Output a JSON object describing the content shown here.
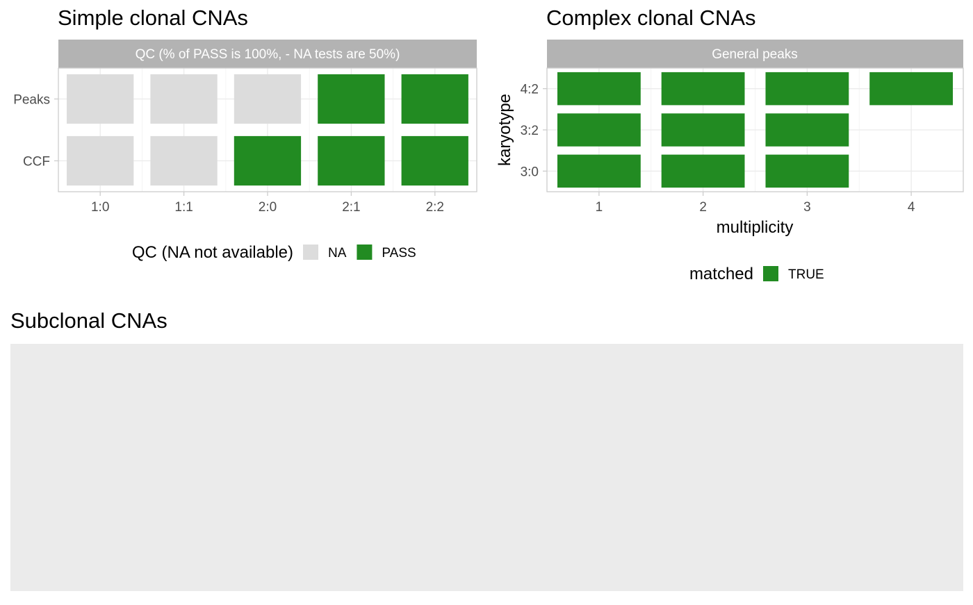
{
  "colors": {
    "PASS": "#228B22",
    "NA": "#DCDCDC",
    "TRUE": "#228B22",
    "strip": "#B3B3B3",
    "empty_panel": "#EBEBEB"
  },
  "panels": {
    "simple": {
      "title": "Simple clonal CNAs"
    },
    "complex": {
      "title": "Complex clonal CNAs"
    },
    "subclonal": {
      "title": "Subclonal CNAs"
    }
  },
  "chart_data": [
    {
      "type": "heatmap",
      "title": "Simple clonal CNAs",
      "facet_label": "QC (% of PASS is 100%, - NA tests are 50%)",
      "x_categories": [
        "1:0",
        "1:1",
        "2:0",
        "2:1",
        "2:2"
      ],
      "y_categories": [
        "Peaks",
        "CCF"
      ],
      "cells": [
        {
          "x": "1:0",
          "y": "Peaks",
          "value": "NA"
        },
        {
          "x": "1:1",
          "y": "Peaks",
          "value": "NA"
        },
        {
          "x": "2:0",
          "y": "Peaks",
          "value": "NA"
        },
        {
          "x": "2:1",
          "y": "Peaks",
          "value": "PASS"
        },
        {
          "x": "2:2",
          "y": "Peaks",
          "value": "PASS"
        },
        {
          "x": "1:0",
          "y": "CCF",
          "value": "NA"
        },
        {
          "x": "1:1",
          "y": "CCF",
          "value": "NA"
        },
        {
          "x": "2:0",
          "y": "CCF",
          "value": "PASS"
        },
        {
          "x": "2:1",
          "y": "CCF",
          "value": "PASS"
        },
        {
          "x": "2:2",
          "y": "CCF",
          "value": "PASS"
        }
      ],
      "legend": {
        "title": "QC (NA not available)",
        "entries": [
          "NA",
          "PASS"
        ],
        "position": "bottom"
      }
    },
    {
      "type": "heatmap",
      "title": "Complex clonal CNAs",
      "facet_label": "General peaks",
      "xlabel": "multiplicity",
      "ylabel": "karyotype",
      "x_categories": [
        "1",
        "2",
        "3",
        "4"
      ],
      "y_categories": [
        "4:2",
        "3:2",
        "3:0"
      ],
      "cells": [
        {
          "x": "1",
          "y": "4:2",
          "value": "TRUE"
        },
        {
          "x": "2",
          "y": "4:2",
          "value": "TRUE"
        },
        {
          "x": "3",
          "y": "4:2",
          "value": "TRUE"
        },
        {
          "x": "4",
          "y": "4:2",
          "value": "TRUE"
        },
        {
          "x": "1",
          "y": "3:2",
          "value": "TRUE"
        },
        {
          "x": "2",
          "y": "3:2",
          "value": "TRUE"
        },
        {
          "x": "3",
          "y": "3:2",
          "value": "TRUE"
        },
        {
          "x": "1",
          "y": "3:0",
          "value": "TRUE"
        },
        {
          "x": "2",
          "y": "3:0",
          "value": "TRUE"
        },
        {
          "x": "3",
          "y": "3:0",
          "value": "TRUE"
        }
      ],
      "legend": {
        "title": "matched",
        "entries": [
          "TRUE"
        ],
        "position": "bottom"
      }
    },
    {
      "type": "heatmap",
      "title": "Subclonal CNAs",
      "cells": []
    }
  ]
}
